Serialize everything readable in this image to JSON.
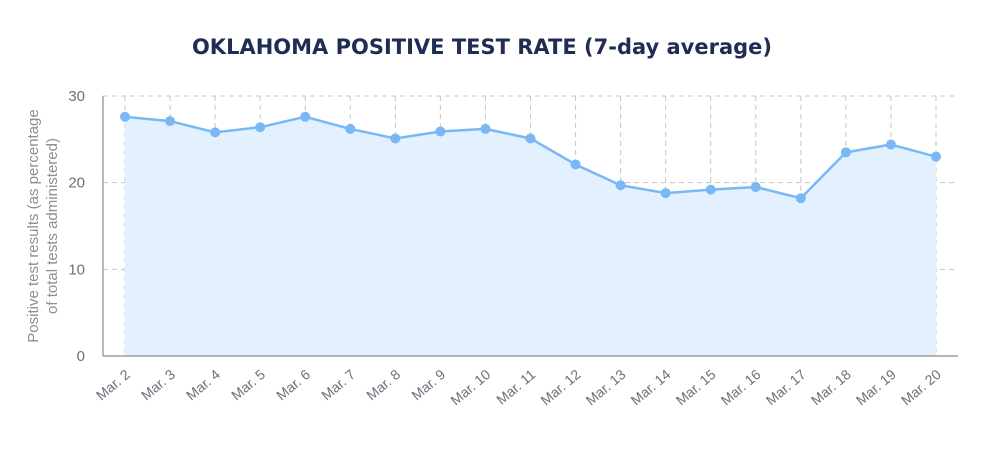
{
  "chart_data": {
    "type": "area",
    "title": "OKLAHOMA POSITIVE TEST RATE (7-day average)",
    "xlabel": "",
    "ylabel_lines": [
      "Positive test results (as percentage",
      "of total tests administered)"
    ],
    "categories": [
      "Mar. 2",
      "Mar. 3",
      "Mar. 4",
      "Mar. 5",
      "Mar. 6",
      "Mar. 7",
      "Mar. 8",
      "Mar. 9",
      "Mar. 10",
      "Mar. 11",
      "Mar. 12",
      "Mar. 13",
      "Mar. 14",
      "Mar. 15",
      "Mar. 16",
      "Mar. 17",
      "Mar. 18",
      "Mar. 19",
      "Mar. 20"
    ],
    "values": [
      27.6,
      27.1,
      25.8,
      26.4,
      27.6,
      26.2,
      25.1,
      25.9,
      26.2,
      25.1,
      22.1,
      19.7,
      18.8,
      19.2,
      19.5,
      18.2,
      23.5,
      24.4,
      23.0
    ],
    "ylim": [
      0,
      30
    ],
    "yticks": [
      0,
      10,
      20,
      30
    ],
    "grid": true,
    "colors": {
      "line": "#7ab8f5",
      "area": "#e3f0fd",
      "title": "#1f2d52"
    }
  }
}
